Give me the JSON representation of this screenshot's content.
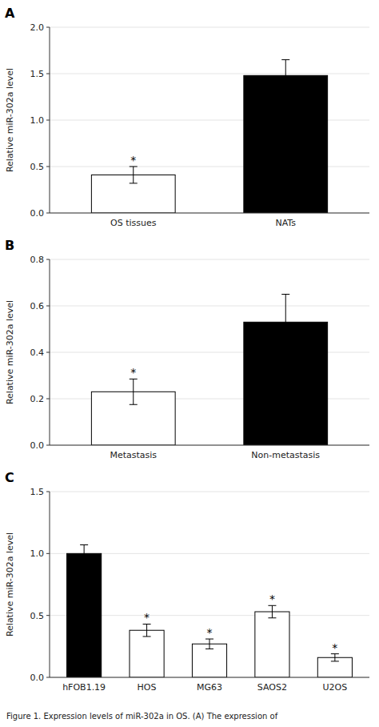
{
  "chart_data": [
    {
      "type": "bar",
      "title": "A",
      "categories": [
        "OS tissues",
        "NATs"
      ],
      "values": [
        0.41,
        1.48
      ],
      "errors": [
        0.09,
        0.17
      ],
      "colors": [
        "white",
        "black"
      ],
      "ylabel": "Relative miR-302a level",
      "ylim": [
        0,
        2.0
      ],
      "yticks": [
        {
          "value": 0.0,
          "label": "0.0"
        },
        0.5,
        {
          "value": 1.0,
          "label": "1.0"
        },
        1.5,
        {
          "value": 2.0,
          "label": "2.0"
        }
      ],
      "annotations": [
        {
          "text": "*",
          "category": "OS tissues"
        }
      ]
    },
    {
      "type": "bar",
      "title": "B",
      "categories": [
        "Metastasis",
        "Non-metastasis"
      ],
      "values": [
        0.23,
        0.53
      ],
      "errors": [
        0.055,
        0.12
      ],
      "colors": [
        "white",
        "black"
      ],
      "ylabel": "Relative miR-302a level",
      "ylim": [
        0,
        0.8
      ],
      "yticks": [
        {
          "value": 0.0,
          "label": "0.0"
        },
        0.2,
        0.4,
        0.6,
        0.8
      ],
      "annotations": [
        {
          "text": "*",
          "category": "Metastasis"
        }
      ]
    },
    {
      "type": "bar",
      "title": "C",
      "categories": [
        "hFOB1.19",
        "HOS",
        "MG63",
        "SAOS2",
        "U2OS"
      ],
      "values": [
        1.0,
        0.38,
        0.27,
        0.53,
        0.16
      ],
      "errors": [
        0.07,
        0.05,
        0.04,
        0.05,
        0.03
      ],
      "colors": [
        "black",
        "white",
        "white",
        "white",
        "white"
      ],
      "ylabel": "Relative miR-302a level",
      "ylim": [
        0,
        1.5
      ],
      "yticks": [
        {
          "value": 0.0,
          "label": "0.0"
        },
        0.5,
        {
          "value": 1.0,
          "label": "1.0"
        },
        1.5
      ],
      "annotations": [
        {
          "text": "*",
          "category": "HOS"
        },
        {
          "text": "*",
          "category": "MG63"
        },
        {
          "text": "*",
          "category": "SAOS2"
        },
        {
          "text": "*",
          "category": "U2OS"
        },
        {
          "text": "Figure 1. Expression levels of miR-302a in OS. (A) The expression of"
        }
      ]
    }
  ]
}
